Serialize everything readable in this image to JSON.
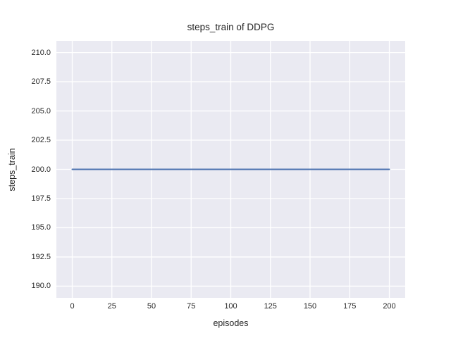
{
  "chart_data": {
    "type": "line",
    "title": "steps_train of DDPG",
    "xlabel": "episodes",
    "ylabel": "steps_train",
    "xlim": [
      -10,
      210
    ],
    "ylim": [
      189,
      211
    ],
    "xticks": [
      0,
      25,
      50,
      75,
      100,
      125,
      150,
      175,
      200
    ],
    "xtick_labels": [
      "0",
      "25",
      "50",
      "75",
      "100",
      "125",
      "150",
      "175",
      "200"
    ],
    "yticks": [
      190.0,
      192.5,
      195.0,
      197.5,
      200.0,
      202.5,
      205.0,
      207.5,
      210.0
    ],
    "ytick_labels": [
      "190.0",
      "192.5",
      "195.0",
      "197.5",
      "200.0",
      "202.5",
      "205.0",
      "207.5",
      "210.0"
    ],
    "grid": true,
    "legend": "none",
    "series": [
      {
        "name": "steps_train",
        "x": [
          0,
          200
        ],
        "y": [
          200,
          200
        ],
        "color": "#4c72b0"
      }
    ],
    "colors": {
      "plot_background": "#eaeaf2",
      "gridline": "#ffffff",
      "line": "#4c72b0",
      "text": "#262626",
      "figure_background": "#ffffff"
    }
  }
}
